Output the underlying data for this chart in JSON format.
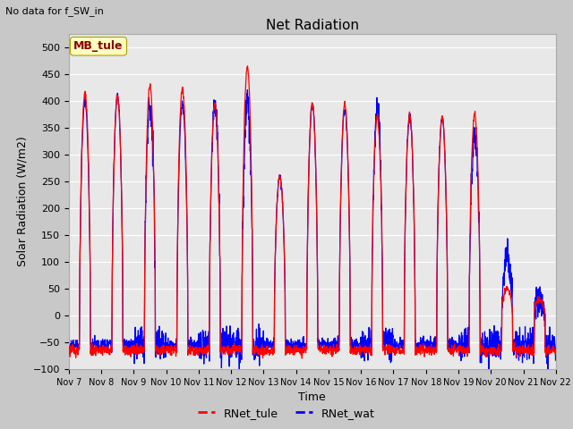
{
  "title": "Net Radiation",
  "suptitle": "No data for f_SW_in",
  "ylabel": "Solar Radiation (W/m2)",
  "xlabel": "Time",
  "ylim": [
    -100,
    525
  ],
  "yticks": [
    -100,
    -50,
    0,
    50,
    100,
    150,
    200,
    250,
    300,
    350,
    400,
    450,
    500
  ],
  "xtick_labels": [
    "Nov 7",
    "Nov 8",
    "Nov 9",
    "Nov 10",
    "Nov 11",
    "Nov 12",
    "Nov 13",
    "Nov 14",
    "Nov 15",
    "Nov 16",
    "Nov 17",
    "Nov 18",
    "Nov 19",
    "Nov 20",
    "Nov 21",
    "Nov 22"
  ],
  "legend_labels": [
    "RNet_tule",
    "RNet_wat"
  ],
  "legend_colors": [
    "red",
    "blue"
  ],
  "annotation_text": "MB_tule",
  "annotation_color": "#8B0000",
  "annotation_bg": "#FFFFC0",
  "line_color_tule": "red",
  "line_color_wat": "blue",
  "fig_facecolor": "#c8c8c8",
  "ax_facecolor": "#e8e8e8",
  "n_days": 15,
  "points_per_day": 144,
  "amplitudes_tule": [
    415,
    410,
    430,
    425,
    395,
    465,
    260,
    395,
    395,
    370,
    375,
    370,
    375,
    50,
    30
  ],
  "amplitudes_wat": [
    400,
    410,
    395,
    395,
    395,
    400,
    260,
    395,
    385,
    385,
    370,
    370,
    335,
    110,
    30
  ],
  "night_val_tule": -65,
  "night_val_wat": -55
}
